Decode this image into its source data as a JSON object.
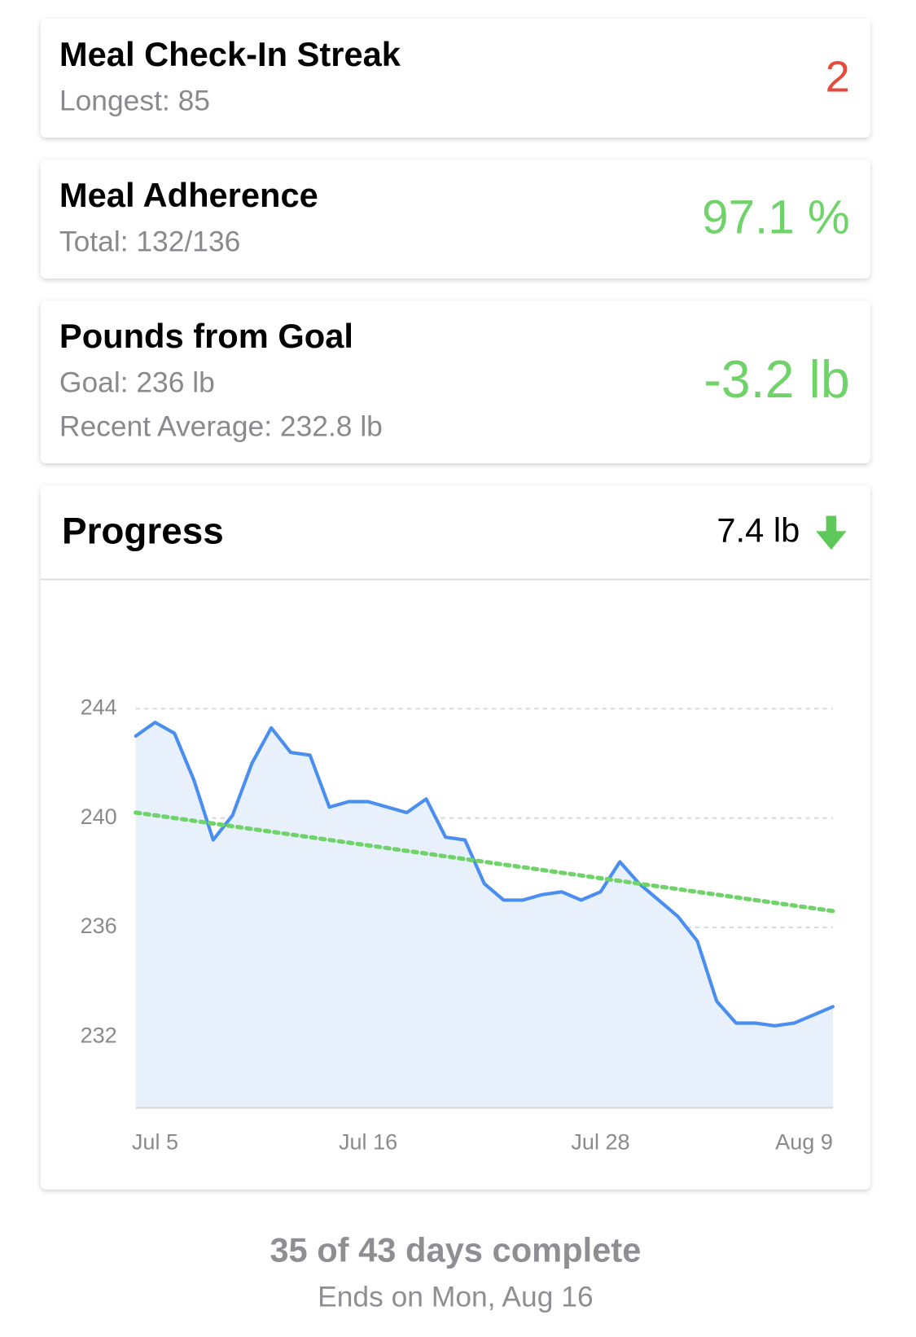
{
  "cards": [
    {
      "title": "Meal Check-In Streak",
      "details": [
        "Longest: 85"
      ],
      "value": "2",
      "value_color": "#e84a3a"
    },
    {
      "title": "Meal Adherence",
      "details": [
        "Total: 132/136"
      ],
      "value": "97.1 %",
      "value_color": "#6fd36a"
    },
    {
      "title": "Pounds from Goal",
      "details": [
        "Goal: 236 lb",
        "Recent Average: 232.8 lb"
      ],
      "value": "-3.2 lb",
      "value_color": "#6fd36a"
    }
  ],
  "progress": {
    "title": "Progress",
    "change": "7.4 lb"
  },
  "chart_data": {
    "type": "line",
    "categories": [
      null,
      "Jul 5",
      null,
      null,
      null,
      null,
      null,
      null,
      null,
      null,
      null,
      null,
      "Jul 16",
      null,
      null,
      null,
      null,
      null,
      null,
      null,
      null,
      null,
      null,
      null,
      "Jul 28",
      null,
      null,
      null,
      null,
      null,
      null,
      null,
      null,
      null,
      null,
      null,
      "Aug 9"
    ],
    "series": [
      {
        "color": "#4a8ef0",
        "fill": "#e8f0fb",
        "values": [
          243.0,
          243.5,
          243.1,
          241.4,
          239.2,
          240.1,
          242.0,
          243.3,
          242.4,
          242.3,
          240.4,
          240.6,
          240.6,
          240.4,
          240.2,
          240.7,
          239.3,
          239.2,
          237.6,
          237.0,
          237.0,
          237.2,
          237.3,
          237.0,
          237.3,
          238.4,
          237.6,
          237.0,
          236.4,
          235.5,
          233.3,
          232.5,
          232.5,
          232.4,
          232.5,
          232.8,
          233.1
        ]
      },
      {
        "color": "#6fd36a",
        "dashed": true,
        "values": [
          240.2,
          240.1,
          240.0,
          239.9,
          239.8,
          239.7,
          239.6,
          239.5,
          239.4,
          239.3,
          239.2,
          239.1,
          239.0,
          238.9,
          238.8,
          238.7,
          238.6,
          238.5,
          238.4,
          238.3,
          238.2,
          238.1,
          238.0,
          237.9,
          237.8,
          237.7,
          237.6,
          237.5,
          237.4,
          237.3,
          237.2,
          237.1,
          237.0,
          236.9,
          236.8,
          236.7,
          236.6
        ]
      }
    ],
    "ylim": [
      229.4,
      248.2
    ],
    "yticks": [
      232,
      236,
      240,
      244
    ],
    "grid": true
  },
  "footer": {
    "title": "35 of 43 days complete",
    "subtitle": "Ends on Mon, Aug 16"
  }
}
